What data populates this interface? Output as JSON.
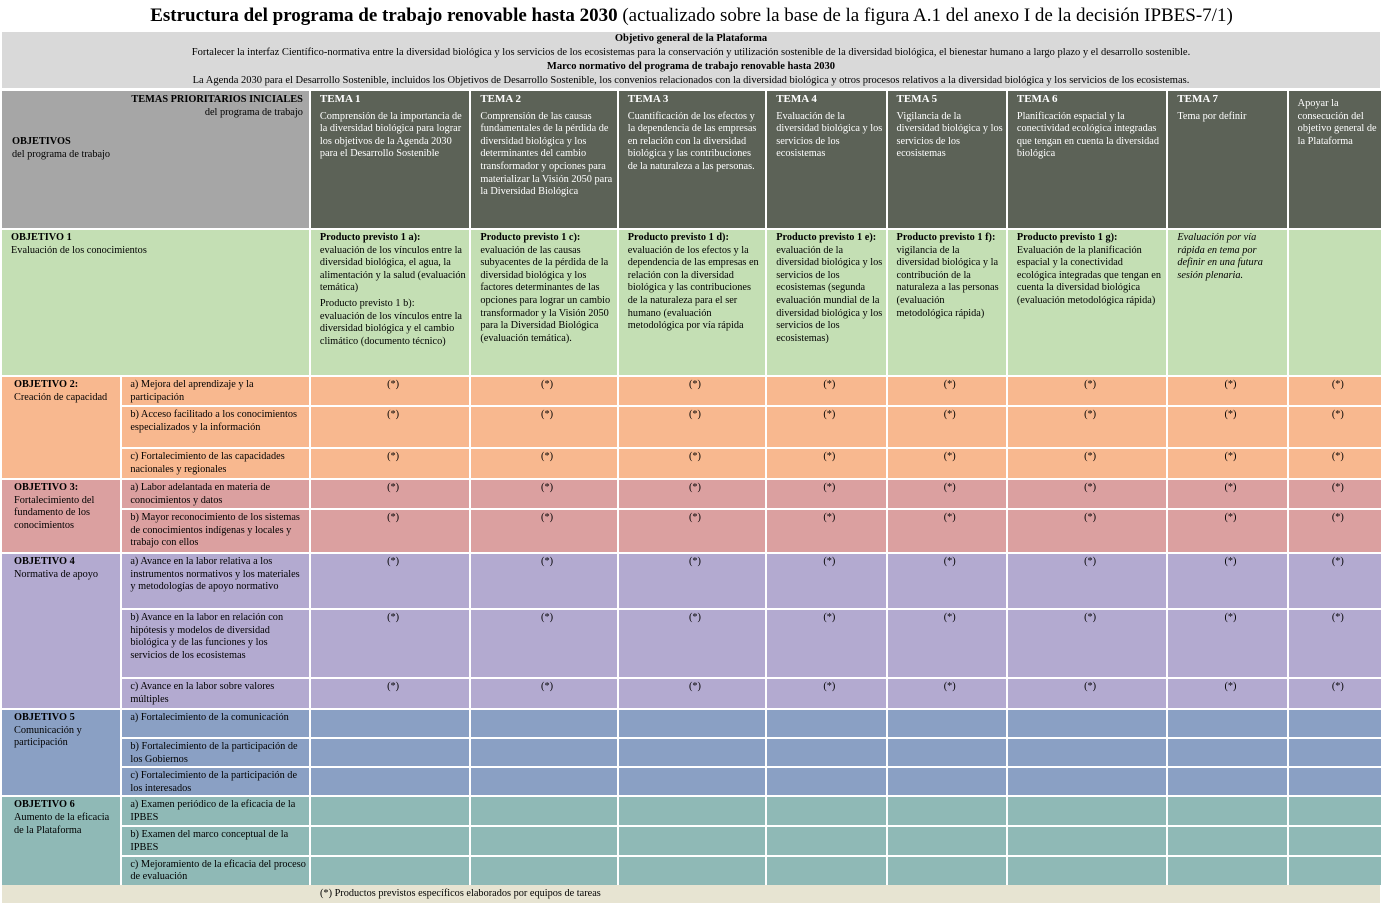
{
  "title": {
    "bold": "Estructura del programa de trabajo renovable hasta 2030",
    "normal": " (actualizado sobre la base de la figura A.1 del anexo I de la decisión IPBES-7/1)"
  },
  "banner": {
    "goal_heading": "Objetivo general de la Plataforma",
    "goal_text": "Fortalecer la interfaz Científico-normativa entre la diversidad biológica y los servicios de los ecosistemas para la conservación y utilización sostenible de la diversidad biológica, el bienestar humano a largo plazo y el desarrollo sostenible.",
    "framework_heading": "Marco normativo del programa de trabajo renovable hasta 2030",
    "framework_text": "La Agenda 2030 para el Desarrollo Sostenible, incluidos los Objetivos de Desarrollo Sostenible, los convenios relacionados con la diversidad biológica y otros procesos relativos a la diversidad biológica y los servicios de los ecosistemas."
  },
  "header": {
    "themes_heading": "TEMAS PRIORITARIOS INICIALES",
    "themes_sub": "del programa de trabajo",
    "objectives_heading": "OBJETIVOS",
    "objectives_sub": "del programa de trabajo",
    "themes": [
      {
        "name": "TEMA 1",
        "desc": "Comprensión de la importancia de la diversidad biológica para lograr los objetivos de la Agenda 2030 para el Desarrollo Sostenible"
      },
      {
        "name": "TEMA 2",
        "desc": "Comprensión de las causas fundamentales de la pérdida de diversidad biológica y los determinantes del cambio transformador y opciones para materializar la Visión 2050 para la Diversidad Biológica"
      },
      {
        "name": "TEMA 3",
        "desc": "Cuantificación de los efectos y la dependencia de las empresas en relación con la diversidad biológica y las contribuciones de la naturaleza a las personas."
      },
      {
        "name": "TEMA 4",
        "desc": "Evaluación de la diversidad biológica y los servicios de los ecosistemas"
      },
      {
        "name": "TEMA 5",
        "desc": "Vigilancia de la diversidad biológica y los servicios de los ecosistemas"
      },
      {
        "name": "TEMA 6",
        "desc": "Planificación espacial y la conectividad ecológica integradas que tengan en cuenta la diversidad biológica"
      },
      {
        "name": "TEMA 7",
        "desc": "Tema por definir"
      },
      {
        "name": "",
        "desc": "Apoyar la consecución del objetivo general de la Plataforma"
      }
    ]
  },
  "objective1": {
    "name": "OBJETIVO 1",
    "desc": "Evaluación de los conocimientos",
    "cells": [
      {
        "head": "Producto previsto 1 a):",
        "text": "evaluación de los vínculos entre la diversidad biológica, el agua, la alimentación y la salud (evaluación temática)",
        "head2": "Producto previsto 1 b):",
        "text2": "evaluación de los vínculos entre la diversidad biológica y el cambio climático (documento técnico)"
      },
      {
        "head": "Producto previsto 1 c):",
        "text": "evaluación de las causas subyacentes de la pérdida de la diversidad biológica y los factores determinantes de las opciones para lograr un cambio transformador y la Visión 2050 para la Diversidad Biológica (evaluación temática)."
      },
      {
        "head": "Producto previsto 1 d):",
        "text": "evaluación de los efectos y la dependencia de las empresas en relación con la diversidad biológica y las contribuciones de la naturaleza para el ser humano (evaluación metodológica por vía rápida"
      },
      {
        "head": "Producto previsto 1 e):",
        "text": "evaluación de la diversidad biológica y los servicios de los ecosistemas (segunda evaluación mundial de la diversidad biológica y los servicios de los ecosistemas)"
      },
      {
        "head": "Producto previsto 1 f):",
        "text": "vigilancia de la diversidad biológica y la contribución de la naturaleza a las personas (evaluación metodológica rápida)"
      },
      {
        "head": "Producto previsto 1 g):",
        "text": "Evaluación de la planificación espacial y la conectividad ecológica integradas que tengan en cuenta la diversidad biológica (evaluación metodológica rápida)"
      },
      {
        "italic": "Evaluación por vía rápida en tema por definir en una futura sesión plenaria."
      },
      {}
    ]
  },
  "star": "(*)",
  "objectives": [
    {
      "name": "OBJETIVO 2:",
      "desc": "Creación de capacidad",
      "cls": "o2",
      "rows": [
        {
          "label": "a) Mejora del aprendizaje y la participación",
          "stars": true
        },
        {
          "label": "b) Acceso facilitado a los conocimientos especializados y la información",
          "stars": true
        },
        {
          "label": "c) Fortalecimiento de las capacidades nacionales y regionales",
          "stars": true
        }
      ]
    },
    {
      "name": "OBJETIVO 3:",
      "desc": "Fortalecimiento del fundamento de los conocimientos",
      "cls": "o3",
      "rows": [
        {
          "label": "a) Labor adelantada en materia de conocimientos y datos",
          "stars": true
        },
        {
          "label": "b) Mayor reconocimiento de los sistemas de conocimientos indígenas y locales y trabajo con ellos",
          "stars": true
        }
      ]
    },
    {
      "name": "OBJETIVO 4",
      "desc": "Normativa de apoyo",
      "cls": "o4",
      "rows": [
        {
          "label": "a) Avance en la labor relativa a los instrumentos normativos y los materiales y metodologías de apoyo normativo",
          "stars": true
        },
        {
          "label": "b) Avance en la labor en relación con hipótesis y modelos de diversidad biológica y de las funciones y los servicios de los ecosistemas",
          "stars": true
        },
        {
          "label": "c) Avance en la labor sobre valores múltiples",
          "stars": true
        }
      ]
    },
    {
      "name": "OBJETIVO 5",
      "desc": "Comunicación y participación",
      "cls": "o5",
      "rows": [
        {
          "label": "a) Fortalecimiento de la comunicación",
          "stars": false
        },
        {
          "label": "b) Fortalecimiento de la participación de los Gobiernos",
          "stars": false
        },
        {
          "label": "c) Fortalecimiento de la participación de los interesados",
          "stars": false
        }
      ]
    },
    {
      "name": "OBJETIVO 6",
      "desc": "Aumento de la eficacia de la Plataforma",
      "cls": "o6",
      "rows": [
        {
          "label": "a) Examen periódico de la eficacia de la IPBES",
          "stars": false
        },
        {
          "label": "b) Examen del marco conceptual de la IPBES",
          "stars": false
        },
        {
          "label": "c) Mejoramiento de la eficacia del proceso de evaluación",
          "stars": false
        }
      ]
    }
  ],
  "footnote": "(*) Productos previstos específicos elaborados por equipos de tareas"
}
